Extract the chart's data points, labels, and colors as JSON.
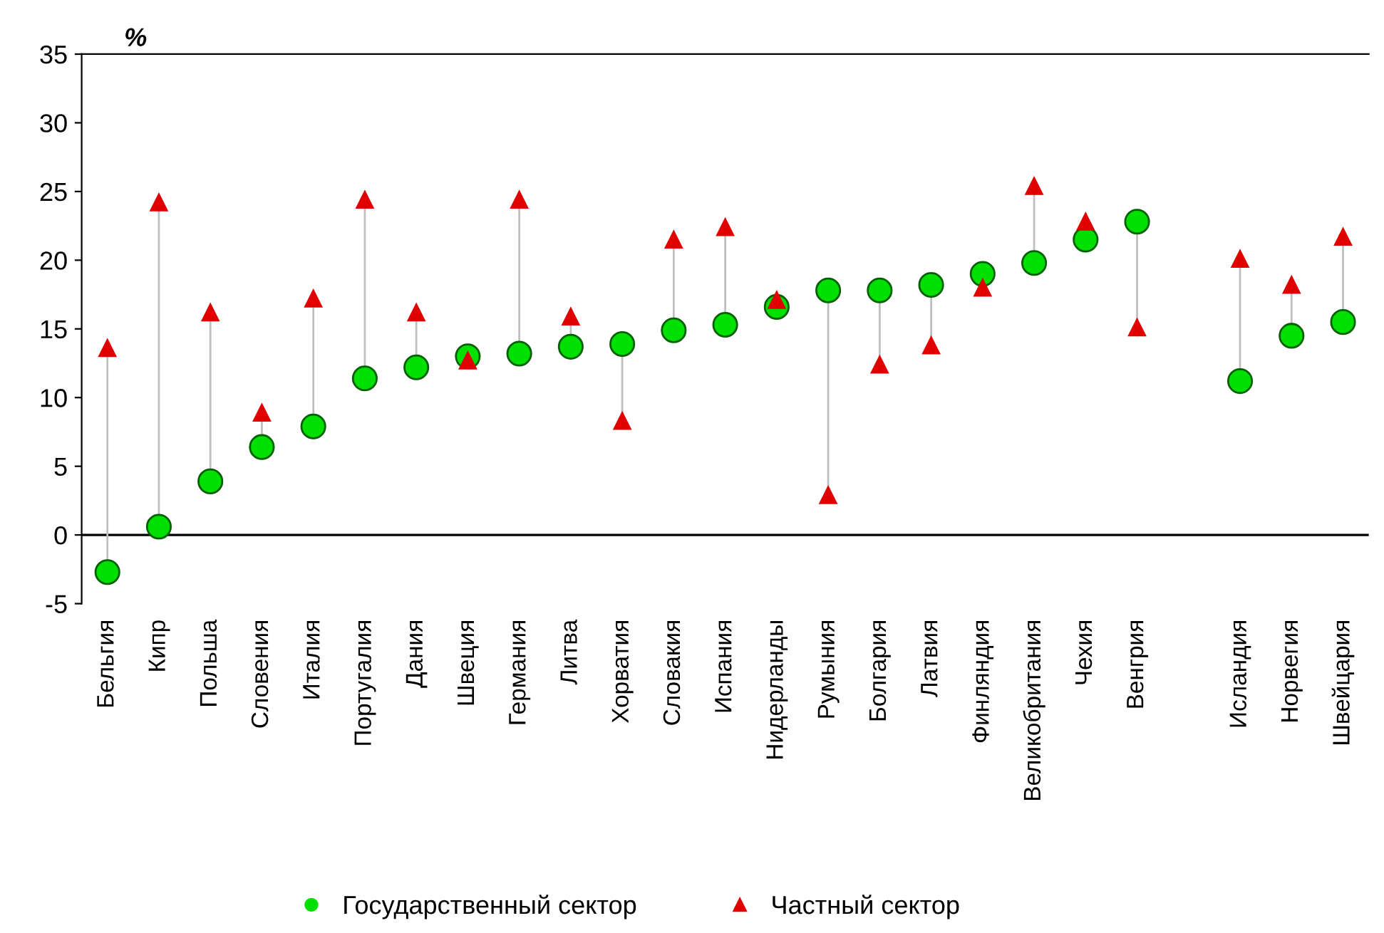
{
  "chart_data": {
    "type": "scatter",
    "ylabel": "%",
    "categories": [
      "Бельгия",
      "Кипр",
      "Польша",
      "Словения",
      "Италия",
      "Португалия",
      "Дания",
      "Швеция",
      "Германия",
      "Литва",
      "Хорватия",
      "Словакия",
      "Испания",
      "Нидерланды",
      "Румыния",
      "Болгария",
      "Латвия",
      "Финляндия",
      "Великобритания",
      "Чехия",
      "Венгрия",
      null,
      "Исландия",
      "Норвегия",
      "Швейцария"
    ],
    "series": [
      {
        "name": "Государственный сектор",
        "color": "#00e000",
        "marker": "circle",
        "values": [
          -2.7,
          0.6,
          3.9,
          6.4,
          7.9,
          11.4,
          12.2,
          13.0,
          13.2,
          13.7,
          13.9,
          14.9,
          15.3,
          16.6,
          17.8,
          17.8,
          18.2,
          19.0,
          19.8,
          21.5,
          22.8,
          null,
          11.2,
          14.5,
          15.5
        ]
      },
      {
        "name": "Частный сектор",
        "color": "#e00000",
        "marker": "triangle",
        "values": [
          13.6,
          24.2,
          16.2,
          8.9,
          17.2,
          24.4,
          16.2,
          12.7,
          24.4,
          15.9,
          8.3,
          21.5,
          22.4,
          17.1,
          2.9,
          12.4,
          13.8,
          18.0,
          25.4,
          22.8,
          15.1,
          null,
          20.1,
          18.2,
          21.7
        ]
      }
    ],
    "ylim": [
      -5,
      35
    ],
    "yticks": [
      -5,
      0,
      5,
      10,
      15,
      20,
      25,
      30,
      35
    ],
    "ref_lines": [
      {
        "axis": "y",
        "value": 0,
        "color": "#000000"
      }
    ],
    "grid": false,
    "legend": "bottom"
  }
}
